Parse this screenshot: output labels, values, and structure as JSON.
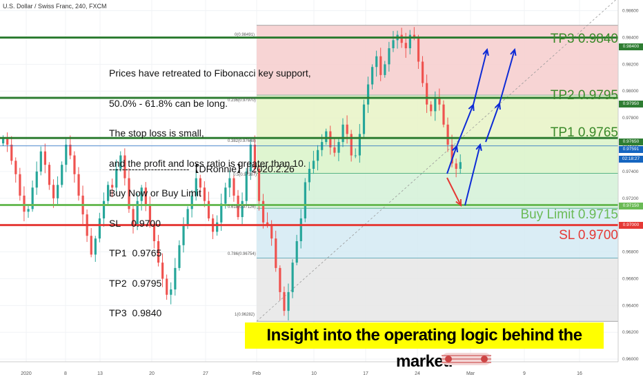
{
  "header": {
    "title": "U.S. Dollar / Swiss Franc, 240, FXCM"
  },
  "note": {
    "lines": [
      "Prices have retreated to Fibonacci key support,",
      "50.0% - 61.8% can be long.",
      "The stop loss is small,",
      "and the profit and loss ratio is greater than 10.",
      "Buy Now or Buy Limit",
      "SL    0.9700",
      "TP1  0.9765",
      "TP2  0.9795",
      "TP3  0.9840"
    ],
    "signature": "-------------------------【DRonnie】| 2020.2.26"
  },
  "banner": "Insight into the operating logic behind the market.",
  "levels": {
    "tp3": "TP3  0.9840",
    "tp2": "TP2  0.9795",
    "tp1": "TP1  0.9765",
    "buy_limit": "Buy Limit 0.9715",
    "sl": "SL 0.9700"
  },
  "price_labels": {
    "tp3": "0.98400",
    "tp2": "0.97950",
    "tp1": "0.97650",
    "current": "0.97591",
    "countdown": "02:18:27",
    "buy_limit": "0.97150",
    "sl": "0.97000"
  },
  "fib_labels": {
    "f0": "0(0.98491)",
    "f236": "0.236(0.97970)",
    "f382": "0.382(0.97648)",
    "f5": "0.5(0.97387)",
    "f618": "0.618(0.97126)",
    "f786": "0.786(0.96754)",
    "f1": "1(0.96282)"
  },
  "watermark": "2:6 3 4 2",
  "colors": {
    "tp_line": "#2e7d32",
    "tp_text": "#3a8a2a",
    "buy_limit": "#6aba55",
    "sl": "#e53935",
    "current": "#1565c0",
    "up_candle": "#26a69a",
    "down_candle": "#ef5350",
    "arrow_up": "#0d2bd6",
    "arrow_down": "#e53935",
    "banner_bg": "#ffff00"
  },
  "chart_data": {
    "type": "candlestick",
    "symbol": "U.S. Dollar / Swiss Franc",
    "timeframe": "240",
    "source": "FXCM",
    "y_range": [
      0.9598,
      0.9868
    ],
    "y_ticks": [
      "0.98600",
      "0.98400",
      "0.98200",
      "0.98000",
      "0.97800",
      "0.97600",
      "0.97400",
      "0.97200",
      "0.97000",
      "0.96800",
      "0.96600",
      "0.96400",
      "0.96200",
      "0.96000"
    ],
    "x_ticks": [
      "2020",
      "8",
      "13",
      "20",
      "27",
      "Feb",
      "10",
      "17",
      "24",
      "Mar",
      "9",
      "16"
    ],
    "horizontal_levels": [
      {
        "name": "TP3",
        "value": 0.984
      },
      {
        "name": "TP2",
        "value": 0.9795
      },
      {
        "name": "TP1",
        "value": 0.9765
      },
      {
        "name": "Buy Limit",
        "value": 0.9715
      },
      {
        "name": "SL",
        "value": 0.97
      },
      {
        "name": "Current",
        "value": 0.97591
      }
    ],
    "fibonacci": [
      {
        "ratio": 0,
        "value": 0.98491
      },
      {
        "ratio": 0.236,
        "value": 0.9797
      },
      {
        "ratio": 0.382,
        "value": 0.97648
      },
      {
        "ratio": 0.5,
        "value": 0.97387
      },
      {
        "ratio": 0.618,
        "value": 0.97126
      },
      {
        "ratio": 0.786,
        "value": 0.96754
      },
      {
        "ratio": 1,
        "value": 0.96282
      }
    ],
    "trend_path": [
      0.9765,
      0.976,
      0.9748,
      0.9738,
      0.9722,
      0.971,
      0.9712,
      0.9728,
      0.974,
      0.9755,
      0.9745,
      0.973,
      0.972,
      0.973,
      0.9745,
      0.976,
      0.9752,
      0.9738,
      0.9722,
      0.9708,
      0.9692,
      0.9678,
      0.969,
      0.9705,
      0.9718,
      0.973,
      0.9728,
      0.9742,
      0.9752,
      0.9735,
      0.9712,
      0.97,
      0.9718,
      0.9728,
      0.9715,
      0.97,
      0.9688,
      0.9672,
      0.966,
      0.9648,
      0.9652,
      0.9668,
      0.9685,
      0.97,
      0.9712,
      0.9722,
      0.9735,
      0.9728,
      0.9718,
      0.9705,
      0.9695,
      0.9702,
      0.9716,
      0.9728,
      0.9735,
      0.9722,
      0.9706,
      0.9718,
      0.974,
      0.976,
      0.9742,
      0.9718,
      0.9702,
      0.97,
      0.969,
      0.9668,
      0.965,
      0.9636,
      0.965,
      0.9672,
      0.9688,
      0.9705,
      0.9732,
      0.9742,
      0.9748,
      0.9756,
      0.9762,
      0.977,
      0.9758,
      0.9754,
      0.9762,
      0.9775,
      0.9768,
      0.9752,
      0.9752,
      0.9768,
      0.979,
      0.9805,
      0.9818,
      0.9826,
      0.9812,
      0.982,
      0.9832,
      0.9838,
      0.9842,
      0.9836,
      0.9832,
      0.9842,
      0.984,
      0.9822,
      0.9806,
      0.979,
      0.9785,
      0.9795,
      0.979,
      0.9775,
      0.976,
      0.9746,
      0.9742,
      0.9747
    ]
  }
}
